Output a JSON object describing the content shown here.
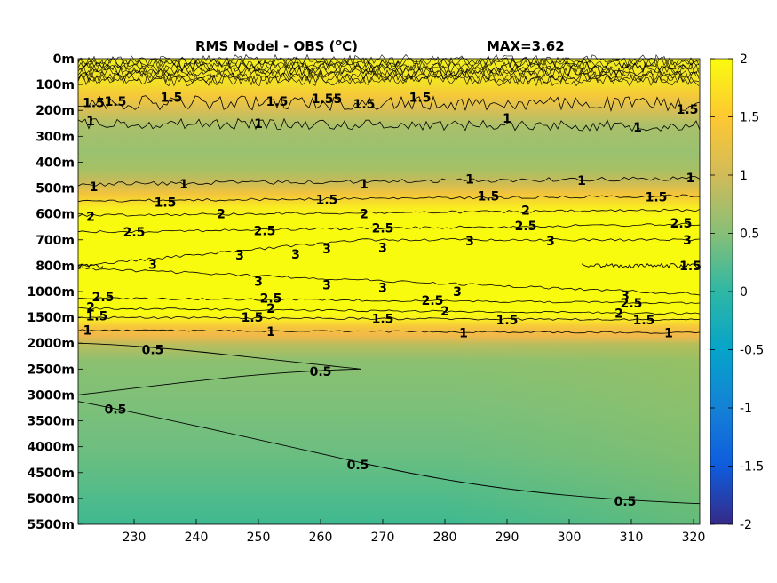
{
  "chart_data": {
    "type": "heatmap",
    "title": "RMS Model - OBS (",
    "title_unit_super": "o",
    "title_unit_rest": "C)",
    "max_label": "MAX=3.62",
    "x_ticks": [
      230,
      240,
      250,
      260,
      270,
      280,
      290,
      300,
      310,
      320
    ],
    "xlim": [
      221,
      321
    ],
    "y_levels": [
      "0m",
      "100m",
      "200m",
      "300m",
      "400m",
      "500m",
      "600m",
      "700m",
      "800m",
      "1000m",
      "1500m",
      "2000m",
      "2500m",
      "3000m",
      "3500m",
      "4000m",
      "4500m",
      "5000m",
      "5500m"
    ],
    "colorbar": {
      "ticks": [
        2,
        1.5,
        1,
        0.5,
        0,
        -0.5,
        -1,
        -1.5,
        -2
      ],
      "range": [
        -2,
        2
      ],
      "colormap": "parula",
      "colors": [
        "#352a87",
        "#0f5cdd",
        "#1481d6",
        "#06a4ca",
        "#2eb7a4",
        "#87bf77",
        "#d1bb59",
        "#fec832",
        "#f9fb0e"
      ]
    },
    "level_values": [
      2.4,
      2.2,
      1.6,
      0.9,
      0.8,
      1.05,
      2.3,
      3.1,
      3.3,
      2.6,
      1.3,
      0.55,
      0.5,
      0.5,
      0.45,
      0.45,
      0.45,
      0.4,
      0.35
    ],
    "contour_labels": [
      {
        "text": "1.5",
        "x": 223.5,
        "level": 1.7
      },
      {
        "text": "1.5",
        "x": 227,
        "level": 1.65
      },
      {
        "text": "1.5",
        "x": 236,
        "level": 1.5
      },
      {
        "text": "1.5",
        "x": 253,
        "level": 1.65
      },
      {
        "text": "1.55",
        "x": 261,
        "level": 1.55
      },
      {
        "text": "1.5",
        "x": 267,
        "level": 1.75
      },
      {
        "text": "1.5",
        "x": 276,
        "level": 1.5
      },
      {
        "text": "1.5",
        "x": 319,
        "level": 1.95
      },
      {
        "text": "1",
        "x": 223,
        "level": 2.4
      },
      {
        "text": "1",
        "x": 250,
        "level": 2.5
      },
      {
        "text": "1",
        "x": 290,
        "level": 2.3
      },
      {
        "text": "1",
        "x": 311,
        "level": 2.65
      },
      {
        "text": "1",
        "x": 223.5,
        "level": 4.95
      },
      {
        "text": "1",
        "x": 238,
        "level": 4.85
      },
      {
        "text": "1",
        "x": 267,
        "level": 4.85
      },
      {
        "text": "1",
        "x": 284,
        "level": 4.65
      },
      {
        "text": "1",
        "x": 302,
        "level": 4.7
      },
      {
        "text": "1",
        "x": 319.5,
        "level": 4.6
      },
      {
        "text": "1.5",
        "x": 235,
        "level": 5.55
      },
      {
        "text": "1.5",
        "x": 261,
        "level": 5.45
      },
      {
        "text": "1.5",
        "x": 287,
        "level": 5.3
      },
      {
        "text": "1.5",
        "x": 314,
        "level": 5.35
      },
      {
        "text": "2",
        "x": 223,
        "level": 6.1
      },
      {
        "text": "2",
        "x": 244,
        "level": 6.0
      },
      {
        "text": "2",
        "x": 267,
        "level": 6.0
      },
      {
        "text": "2",
        "x": 293,
        "level": 5.85
      },
      {
        "text": "2.5",
        "x": 230,
        "level": 6.7
      },
      {
        "text": "2.5",
        "x": 251,
        "level": 6.65
      },
      {
        "text": "2.5",
        "x": 270,
        "level": 6.55
      },
      {
        "text": "2.5",
        "x": 293,
        "level": 6.45
      },
      {
        "text": "2.5",
        "x": 318,
        "level": 6.35
      },
      {
        "text": "3",
        "x": 256,
        "level": 7.55
      },
      {
        "text": "3",
        "x": 284,
        "level": 7.05
      },
      {
        "text": "3",
        "x": 233,
        "level": 7.95
      },
      {
        "text": "3",
        "x": 261,
        "level": 7.35
      },
      {
        "text": "3",
        "x": 270,
        "level": 7.3
      },
      {
        "text": "3",
        "x": 297,
        "level": 7.05
      },
      {
        "text": "3",
        "x": 319,
        "level": 7.0
      },
      {
        "text": "3",
        "x": 247,
        "level": 7.6
      },
      {
        "text": "3",
        "x": 261,
        "level": 8.75
      },
      {
        "text": "3",
        "x": 270,
        "level": 8.85
      },
      {
        "text": "3",
        "x": 282,
        "level": 9.0
      },
      {
        "text": "3",
        "x": 309,
        "level": 9.15
      },
      {
        "text": "3",
        "x": 250,
        "level": 8.6
      },
      {
        "text": "1.5",
        "x": 319.5,
        "level": 8.0
      },
      {
        "text": "2.5",
        "x": 225,
        "level": 9.2
      },
      {
        "text": "2.5",
        "x": 252,
        "level": 9.25
      },
      {
        "text": "2.5",
        "x": 278,
        "level": 9.35
      },
      {
        "text": "2.5",
        "x": 310,
        "level": 9.45
      },
      {
        "text": "2",
        "x": 223,
        "level": 9.6
      },
      {
        "text": "2",
        "x": 252,
        "level": 9.65
      },
      {
        "text": "2",
        "x": 280,
        "level": 9.75
      },
      {
        "text": "2",
        "x": 308,
        "level": 9.85
      },
      {
        "text": "1.5",
        "x": 224,
        "level": 9.95
      },
      {
        "text": "1.5",
        "x": 249,
        "level": 10.0
      },
      {
        "text": "1.5",
        "x": 270,
        "level": 10.05
      },
      {
        "text": "1.5",
        "x": 290,
        "level": 10.1
      },
      {
        "text": "1.5",
        "x": 312,
        "level": 10.1
      },
      {
        "text": "1",
        "x": 222.5,
        "level": 10.5
      },
      {
        "text": "1",
        "x": 252,
        "level": 10.55
      },
      {
        "text": "1",
        "x": 283,
        "level": 10.6
      },
      {
        "text": "1",
        "x": 316,
        "level": 10.6
      },
      {
        "text": "0.5",
        "x": 233,
        "level": 11.25
      },
      {
        "text": "0.5",
        "x": 260,
        "level": 12.1
      },
      {
        "text": "0.5",
        "x": 227,
        "level": 13.55
      },
      {
        "text": "0.5",
        "x": 266,
        "level": 15.7
      },
      {
        "text": "0.5",
        "x": 309,
        "level": 17.1
      }
    ]
  }
}
